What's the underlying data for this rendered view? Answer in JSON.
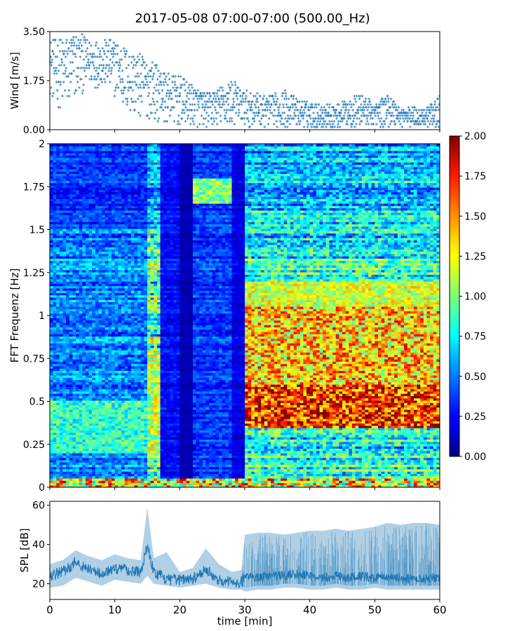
{
  "title": "2017-05-08 07:00-07:00 (500.00_Hz)",
  "chart_data": [
    {
      "panel": "wind",
      "type": "scatter",
      "ylabel": "Wind [m/s]",
      "xlim": [
        0,
        60
      ],
      "ylim": [
        0,
        3.5
      ],
      "yticks": [
        0.0,
        1.75,
        3.5
      ],
      "ytick_labels": [
        "0.00",
        "1.75",
        "3.50"
      ],
      "color": "#1f77b4",
      "marker": "+",
      "envelope": {
        "t": [
          0,
          2,
          4,
          6,
          8,
          10,
          12,
          14,
          16,
          18,
          20,
          22,
          24,
          26,
          28,
          30,
          32,
          34,
          36,
          38,
          40,
          42,
          44,
          46,
          48,
          50,
          52,
          54,
          56,
          58,
          60
        ],
        "hi": [
          3.2,
          3.3,
          3.5,
          3.2,
          3.2,
          3.2,
          2.9,
          2.7,
          2.4,
          2.0,
          1.9,
          1.6,
          1.3,
          1.5,
          1.8,
          1.4,
          1.3,
          1.2,
          1.4,
          1.1,
          1.0,
          0.9,
          0.9,
          1.1,
          1.3,
          0.9,
          1.3,
          0.8,
          0.8,
          0.8,
          1.2
        ],
        "lo": [
          1.2,
          0.5,
          1.0,
          1.5,
          1.5,
          1.2,
          0.5,
          0.3,
          0.4,
          0.2,
          0.1,
          0.1,
          0.1,
          0.1,
          0.1,
          0.1,
          0.1,
          0.1,
          0.1,
          0.1,
          0.05,
          0.05,
          0.05,
          0.1,
          0.1,
          0.1,
          0.1,
          0.1,
          0.1,
          0.1,
          0.1
        ]
      }
    },
    {
      "panel": "spectrogram",
      "type": "heatmap",
      "ylabel": "FFT Frequenz [Hz]",
      "xlim": [
        0,
        60
      ],
      "ylim": [
        0,
        2
      ],
      "yticks": [
        0,
        0.25,
        0.5,
        0.75,
        1,
        1.25,
        1.5,
        1.75,
        2
      ],
      "ytick_labels": [
        "0",
        "0.25",
        "0.5",
        "0.75",
        "1",
        "1.25",
        "1.5",
        "1.75",
        "2"
      ],
      "colormap": "jet",
      "colorbar": {
        "range": [
          0,
          2
        ],
        "ticks": [
          "0.00",
          "0.25",
          "0.50",
          "0.75",
          "1.00",
          "1.25",
          "1.50",
          "1.75",
          "2.00"
        ]
      },
      "regions": [
        {
          "t_from": 0,
          "t_to": 15,
          "mean_level": 0.5,
          "peak_band_hz": [
            0.2,
            0.5
          ],
          "peak_level": 1.0
        },
        {
          "t_from": 15,
          "t_to": 17,
          "mean_level": 0.9,
          "peak_band_hz": [
            0.2,
            0.8
          ],
          "peak_level": 1.3
        },
        {
          "t_from": 17,
          "t_to": 20,
          "mean_level": 0.25,
          "peak_band_hz": [
            0.0,
            0.05
          ],
          "peak_level": 1.5
        },
        {
          "t_from": 20,
          "t_to": 22,
          "mean_level": 0.1,
          "peak_band_hz": [
            0.0,
            0.05
          ],
          "peak_level": 1.0
        },
        {
          "t_from": 22,
          "t_to": 28,
          "mean_level": 0.35,
          "peak_band_hz": [
            1.65,
            1.8
          ],
          "peak_level": 1.2
        },
        {
          "t_from": 28,
          "t_to": 30,
          "mean_level": 0.2,
          "peak_band_hz": [
            0.0,
            0.05
          ],
          "peak_level": 0.8
        },
        {
          "t_from": 30,
          "t_to": 60,
          "mean_level": 0.8,
          "peak_band_hz": [
            0.35,
            0.6
          ],
          "peak_level": 1.95
        }
      ]
    },
    {
      "panel": "spl",
      "type": "line",
      "ylabel": "SPL [dB]",
      "xlabel": "time [min]",
      "xlim": [
        0,
        60
      ],
      "ylim": [
        12,
        62
      ],
      "yticks": [
        20,
        40,
        60
      ],
      "xticks": [
        0,
        10,
        20,
        30,
        40,
        50,
        60
      ],
      "color": "#1f77b4",
      "envelope": {
        "t": [
          0,
          2,
          4,
          6,
          8,
          10,
          12,
          14,
          15,
          16,
          18,
          20,
          22,
          24,
          26,
          28,
          29.5,
          30,
          32,
          34,
          36,
          38,
          40,
          42,
          44,
          46,
          48,
          50,
          52,
          54,
          56,
          58,
          60
        ],
        "hi": [
          30,
          32,
          37,
          34,
          32,
          35,
          33,
          32,
          59,
          33,
          36,
          26,
          28,
          38,
          30,
          26,
          27,
          45,
          46,
          46,
          45,
          46,
          47,
          47,
          48,
          47,
          48,
          49,
          51,
          50,
          51,
          51,
          50
        ],
        "lo": [
          18,
          19,
          23,
          21,
          19,
          22,
          21,
          20,
          24,
          20,
          19,
          18,
          19,
          20,
          18,
          17,
          17,
          16,
          17,
          17,
          18,
          18,
          17,
          17,
          18,
          17,
          17,
          18,
          17,
          17,
          17,
          17,
          17
        ],
        "mid": [
          24,
          26,
          31,
          27,
          25,
          28,
          27,
          26,
          40,
          26,
          22,
          22,
          23,
          27,
          22,
          21,
          21,
          24,
          23,
          24,
          24,
          25,
          24,
          23,
          24,
          23,
          24,
          23,
          24,
          23,
          22,
          23,
          23
        ]
      }
    }
  ]
}
